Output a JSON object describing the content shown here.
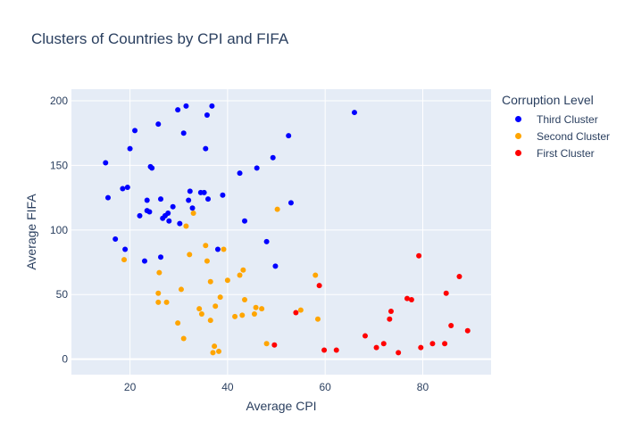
{
  "chart_data": {
    "type": "scatter",
    "title": "Clusters of Countries by CPI and FIFA",
    "xlabel": "Average CPI",
    "ylabel": "Average FIFA",
    "xlim": [
      8,
      94
    ],
    "ylim": [
      -12,
      209
    ],
    "xticks": [
      20,
      40,
      60,
      80
    ],
    "yticks": [
      0,
      50,
      100,
      150,
      200
    ],
    "grid": true,
    "legend_title": "Corruption Level",
    "legend_position": "top-right",
    "series": [
      {
        "name": "Third Cluster",
        "color": "#0000ff",
        "points": [
          [
            15.0,
            152
          ],
          [
            15.5,
            125
          ],
          [
            17.0,
            93
          ],
          [
            18.5,
            132
          ],
          [
            19.0,
            85
          ],
          [
            19.5,
            133
          ],
          [
            20.0,
            163
          ],
          [
            21.0,
            177
          ],
          [
            22.0,
            111
          ],
          [
            23.0,
            76
          ],
          [
            23.5,
            115
          ],
          [
            23.5,
            123
          ],
          [
            24.0,
            114
          ],
          [
            24.2,
            149
          ],
          [
            24.5,
            148
          ],
          [
            25.8,
            182
          ],
          [
            26.3,
            79
          ],
          [
            26.3,
            124
          ],
          [
            26.7,
            109
          ],
          [
            27.2,
            111
          ],
          [
            27.8,
            113
          ],
          [
            28.0,
            107
          ],
          [
            28.8,
            118
          ],
          [
            29.8,
            193
          ],
          [
            30.2,
            105
          ],
          [
            31.0,
            175
          ],
          [
            31.5,
            196
          ],
          [
            32.0,
            123
          ],
          [
            32.3,
            130
          ],
          [
            32.8,
            117
          ],
          [
            34.5,
            129
          ],
          [
            35.2,
            129
          ],
          [
            35.5,
            163
          ],
          [
            35.8,
            189
          ],
          [
            36.0,
            124
          ],
          [
            36.8,
            196
          ],
          [
            38.0,
            85
          ],
          [
            39.0,
            127
          ],
          [
            42.5,
            144
          ],
          [
            43.5,
            107
          ],
          [
            46.0,
            148
          ],
          [
            48.0,
            91
          ],
          [
            49.3,
            156
          ],
          [
            49.8,
            72
          ],
          [
            52.5,
            173
          ],
          [
            53.0,
            121
          ],
          [
            66.0,
            191
          ]
        ]
      },
      {
        "name": "Second Cluster",
        "color": "#ffa500",
        "points": [
          [
            18.8,
            77
          ],
          [
            25.8,
            51
          ],
          [
            25.8,
            44
          ],
          [
            26.0,
            67
          ],
          [
            27.5,
            44
          ],
          [
            29.8,
            28
          ],
          [
            30.5,
            54
          ],
          [
            31.0,
            16
          ],
          [
            31.5,
            103
          ],
          [
            32.2,
            81
          ],
          [
            33.0,
            113
          ],
          [
            34.2,
            39
          ],
          [
            34.7,
            35
          ],
          [
            35.5,
            88
          ],
          [
            35.8,
            76
          ],
          [
            36.5,
            30
          ],
          [
            36.5,
            60
          ],
          [
            37.0,
            5
          ],
          [
            37.3,
            10
          ],
          [
            37.5,
            41
          ],
          [
            38.2,
            6
          ],
          [
            38.5,
            48
          ],
          [
            39.2,
            85
          ],
          [
            40.0,
            61
          ],
          [
            41.5,
            33
          ],
          [
            42.5,
            65
          ],
          [
            43.0,
            34
          ],
          [
            43.2,
            69
          ],
          [
            43.5,
            46
          ],
          [
            45.5,
            35
          ],
          [
            45.8,
            40
          ],
          [
            47.0,
            39
          ],
          [
            48.0,
            12
          ],
          [
            50.2,
            116
          ],
          [
            55.0,
            38
          ],
          [
            58.0,
            65
          ],
          [
            58.5,
            31
          ]
        ]
      },
      {
        "name": "First Cluster",
        "color": "#ff0000",
        "points": [
          [
            49.6,
            11
          ],
          [
            54.0,
            36
          ],
          [
            58.8,
            57
          ],
          [
            59.8,
            7
          ],
          [
            62.3,
            7
          ],
          [
            68.2,
            18
          ],
          [
            70.5,
            9
          ],
          [
            72.0,
            12
          ],
          [
            73.2,
            31
          ],
          [
            73.5,
            37
          ],
          [
            75.0,
            5
          ],
          [
            76.8,
            47
          ],
          [
            77.7,
            46
          ],
          [
            79.2,
            80
          ],
          [
            79.6,
            9
          ],
          [
            82.0,
            12
          ],
          [
            84.5,
            12
          ],
          [
            84.8,
            51
          ],
          [
            85.8,
            26
          ],
          [
            87.5,
            64
          ],
          [
            89.2,
            22
          ]
        ]
      }
    ]
  }
}
